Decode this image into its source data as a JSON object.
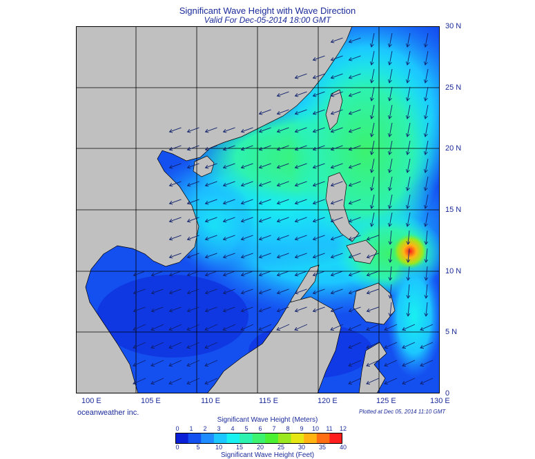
{
  "title": "Significant Wave Height with Wave Direction",
  "subtitle": "Valid For Dec-05-2014 18:00 GMT",
  "credit": "oceanweather inc.",
  "plotted": "Plotted at Dec 05, 2014 11:10 GMT",
  "lon_labels": [
    "100 E",
    "105 E",
    "110 E",
    "115 E",
    "120 E",
    "125 E",
    "130 E"
  ],
  "lat_labels": [
    "30 N",
    "25 N",
    "20 N",
    "15 N",
    "10 N",
    "5 N",
    "0"
  ],
  "colorbar": {
    "meters_title": "Significant Wave Height (Meters)",
    "feet_title": "Significant Wave Height (Feet)",
    "meters_ticks": [
      "0",
      "1",
      "2",
      "3",
      "4",
      "5",
      "6",
      "7",
      "8",
      "9",
      "10",
      "11",
      "12"
    ],
    "feet_ticks": [
      "0",
      "5",
      "10",
      "15",
      "20",
      "25",
      "30",
      "35",
      "40"
    ],
    "colors": [
      "#0a1fd6",
      "#1450f0",
      "#1e8cff",
      "#1cc6ff",
      "#19f0f0",
      "#2ef2b0",
      "#3cf26e",
      "#4cf032",
      "#9ce820",
      "#e6e614",
      "#ffb414",
      "#ff6e14",
      "#ff1e1e"
    ]
  },
  "colors": {
    "land": "#c0c0c0",
    "sea_low": "#1450f0",
    "sea_mid": "#1ec8ff",
    "sea_high": "#3cf26e",
    "peak": "#ff1e1e"
  }
}
